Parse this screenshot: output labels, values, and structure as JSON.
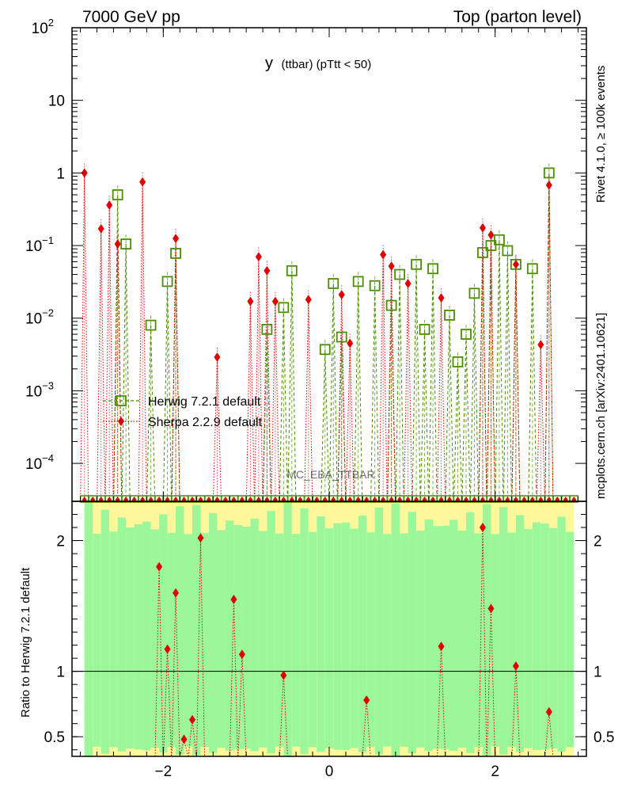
{
  "header": {
    "left": "7000 GeV pp",
    "right": "Top (parton level)"
  },
  "side": {
    "rivet": "Rivet 4.1.0, ≥ 100k events",
    "mcplots": "mcplots.cern.ch [arXiv:2401.10621]"
  },
  "chart_data": {
    "type": "scatter",
    "title": "y (ttbar) (pTtt < 50)",
    "title_main": "y",
    "title_sub": "(ttbar)  (pTtt < 50)",
    "watermark": "MC_EBA_TTBAR",
    "xlim": [
      -3.1,
      3.1
    ],
    "main_ylim": [
      3e-05,
      100
    ],
    "main_yscale": "log",
    "ratio_ylim": [
      0.35,
      2.3
    ],
    "ratio_ylabel": "Ratio to Herwig 7.2.1 default",
    "main_yticks": [
      {
        "v": 0.0001,
        "b": "10",
        "e": "−4"
      },
      {
        "v": 0.001,
        "b": "10",
        "e": "−3"
      },
      {
        "v": 0.01,
        "b": "10",
        "e": "−2"
      },
      {
        "v": 0.1,
        "b": "10",
        "e": "−1"
      },
      {
        "v": 1,
        "b": "1",
        "e": ""
      },
      {
        "v": 10,
        "b": "10",
        "e": ""
      },
      {
        "v": 100,
        "b": "10",
        "e": "2"
      }
    ],
    "ratio_yticks": [
      {
        "v": 0.5,
        "label": "0.5"
      },
      {
        "v": 1,
        "label": "1"
      },
      {
        "v": 2,
        "label": "2"
      }
    ],
    "xticks": [
      {
        "v": -2,
        "label": "−2"
      },
      {
        "v": 0,
        "label": "0"
      },
      {
        "v": 2,
        "label": "2"
      }
    ],
    "legend": [
      {
        "name": "Herwig 7.2.1 default",
        "color": "#4a8f00",
        "marker": "square"
      },
      {
        "name": "Sherpa 2.2.9 default",
        "color": "#e00000",
        "marker": "diamond"
      }
    ],
    "series": [
      {
        "name": "Herwig 7.2.1 default",
        "x": [
          -2.55,
          -2.45,
          -2.15,
          -1.95,
          -1.85,
          -0.75,
          -0.55,
          -0.45,
          -0.05,
          0.05,
          0.15,
          0.35,
          0.55,
          0.75,
          0.85,
          1.05,
          1.15,
          1.25,
          1.45,
          1.55,
          1.65,
          1.75,
          1.85,
          1.95,
          2.05,
          2.15,
          2.25,
          2.45,
          2.65
        ],
        "y": [
          0.5,
          0.105,
          0.008,
          0.032,
          0.078,
          0.007,
          0.014,
          0.045,
          0.0037,
          0.03,
          0.0055,
          0.032,
          0.028,
          0.015,
          0.04,
          0.055,
          0.007,
          0.048,
          0.011,
          0.0025,
          0.006,
          0.022,
          0.08,
          0.1,
          0.12,
          0.085,
          0.055,
          0.048,
          1.0
        ]
      },
      {
        "name": "Sherpa 2.2.9 default",
        "x": [
          -2.95,
          -2.75,
          -2.65,
          -2.55,
          -2.25,
          -1.85,
          -1.35,
          -0.95,
          -0.85,
          -0.75,
          -0.65,
          -0.25,
          0.15,
          0.25,
          0.65,
          0.75,
          0.95,
          1.35,
          1.85,
          1.95,
          2.25,
          2.55,
          2.65
        ],
        "y": [
          1.0,
          0.17,
          0.36,
          0.105,
          0.75,
          0.125,
          0.0029,
          0.017,
          0.07,
          0.045,
          0.017,
          0.018,
          0.021,
          0.0045,
          0.075,
          0.052,
          0.03,
          0.019,
          0.175,
          0.14,
          0.055,
          0.0043,
          0.68
        ]
      }
    ],
    "ratio_points": {
      "x": [
        -2.05,
        -1.95,
        -1.85,
        -1.75,
        -1.65,
        -1.55,
        -1.15,
        -1.05,
        -0.55,
        0.45,
        1.35,
        1.85,
        1.95,
        2.25,
        2.65
      ],
      "y": [
        1.8,
        1.17,
        1.6,
        0.48,
        0.63,
        2.02,
        1.55,
        1.13,
        0.97,
        0.78,
        1.19,
        2.1,
        1.48,
        1.04,
        0.69
      ]
    }
  }
}
